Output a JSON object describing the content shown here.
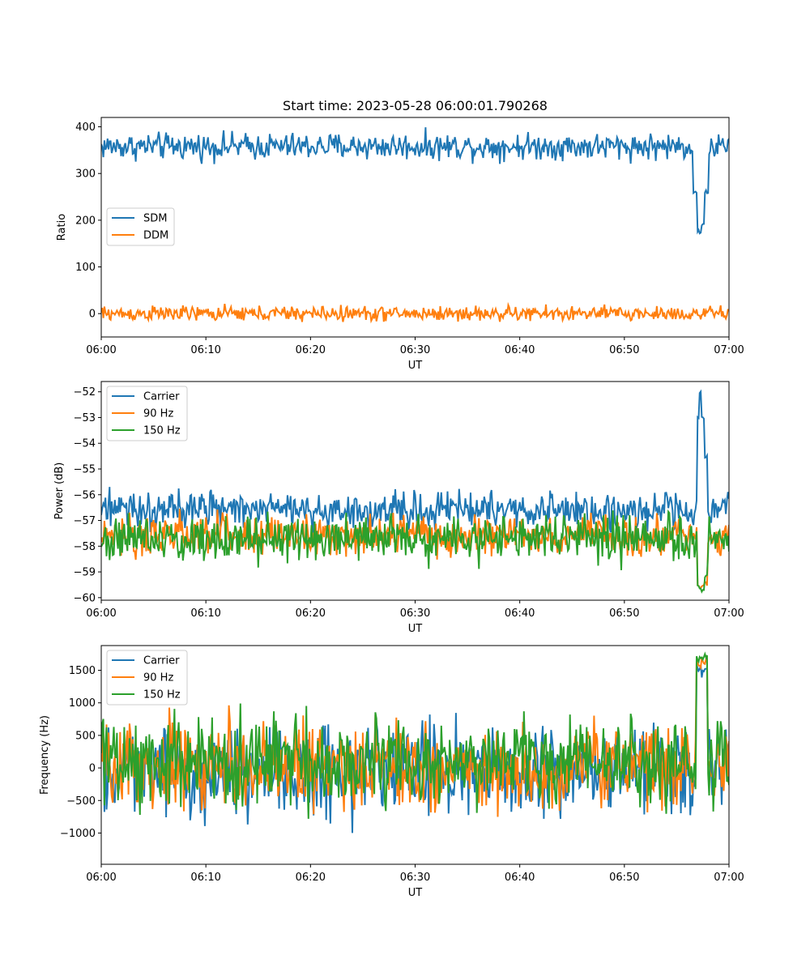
{
  "figure": {
    "title": "Start time: 2023-05-28 06:00:01.790268"
  },
  "colors": {
    "c1": "#1f77b4",
    "c2": "#ff7f0e",
    "c3": "#2ca02c"
  },
  "chart_data": [
    {
      "type": "line",
      "title": "Start time: 2023-05-28 06:00:01.790268",
      "xlabel": "UT",
      "ylabel": "Ratio",
      "xlim": [
        0,
        60
      ],
      "ylim": [
        -50,
        420
      ],
      "xticks": [
        0,
        10,
        20,
        30,
        40,
        50,
        60
      ],
      "xtick_labels": [
        "06:00",
        "06:10",
        "06:20",
        "06:30",
        "06:40",
        "06:50",
        "07:00"
      ],
      "yticks": [
        0,
        100,
        200,
        300,
        400
      ],
      "ytick_labels": [
        "0",
        "100",
        "200",
        "300",
        "400"
      ],
      "legend": "center-left",
      "series": [
        {
          "name": "SDM",
          "color": "#1f77b4",
          "base": 358,
          "noise": 14,
          "events": [
            [
              56.6,
              57.0,
              260
            ],
            [
              57.0,
              57.4,
              175
            ],
            [
              57.4,
              57.7,
              190
            ],
            [
              57.7,
              58.0,
              260
            ]
          ]
        },
        {
          "name": "DDM",
          "color": "#ff7f0e",
          "base": 0,
          "noise": 8,
          "events": []
        }
      ]
    },
    {
      "type": "line",
      "title": "",
      "xlabel": "UT",
      "ylabel": "Power (dB)",
      "xlim": [
        0,
        60
      ],
      "ylim": [
        -60.1,
        -51.6
      ],
      "xticks": [
        0,
        10,
        20,
        30,
        40,
        50,
        60
      ],
      "xtick_labels": [
        "06:00",
        "06:10",
        "06:20",
        "06:30",
        "06:40",
        "06:50",
        "07:00"
      ],
      "yticks": [
        -60,
        -59,
        -58,
        -57,
        -56,
        -55,
        -54,
        -53,
        -52
      ],
      "ytick_labels": [
        "−60",
        "−59",
        "−58",
        "−57",
        "−56",
        "−55",
        "−54",
        "−53",
        "−52"
      ],
      "legend": "upper-left",
      "series": [
        {
          "name": "Carrier",
          "color": "#1f77b4",
          "base": -56.6,
          "noise": 0.35,
          "events": [
            [
              57.0,
              57.2,
              -53.0
            ],
            [
              57.2,
              57.4,
              -52.0
            ],
            [
              57.4,
              57.6,
              -53.0
            ],
            [
              57.6,
              57.9,
              -54.5
            ]
          ]
        },
        {
          "name": "90 Hz",
          "color": "#ff7f0e",
          "base": -57.6,
          "noise": 0.4,
          "events": [
            [
              57.0,
              57.3,
              -59.5
            ],
            [
              57.3,
              57.6,
              -59.6
            ],
            [
              57.6,
              57.9,
              -59.4
            ]
          ]
        },
        {
          "name": "150 Hz",
          "color": "#2ca02c",
          "base": -57.7,
          "noise": 0.45,
          "events": [
            [
              57.0,
              57.3,
              -59.6
            ],
            [
              57.3,
              57.6,
              -59.7
            ],
            [
              57.6,
              57.9,
              -59.2
            ]
          ]
        }
      ]
    },
    {
      "type": "line",
      "title": "",
      "xlabel": "UT",
      "ylabel": "Frequency (Hz)",
      "xlim": [
        0,
        60
      ],
      "ylim": [
        -1480,
        1880
      ],
      "xticks": [
        0,
        10,
        20,
        30,
        40,
        50,
        60
      ],
      "xtick_labels": [
        "06:00",
        "06:10",
        "06:20",
        "06:30",
        "06:40",
        "06:50",
        "07:00"
      ],
      "yticks": [
        -1000,
        -500,
        0,
        500,
        1000,
        1500
      ],
      "ytick_labels": [
        "−1000",
        "−500",
        "0",
        "500",
        "1000",
        "1500"
      ],
      "legend": "upper-left",
      "series": [
        {
          "name": "Carrier",
          "color": "#1f77b4",
          "base": -40,
          "noise": 330,
          "events": [
            [
              56.9,
              57.9,
              1520
            ]
          ]
        },
        {
          "name": "90 Hz",
          "color": "#ff7f0e",
          "base": 40,
          "noise": 330,
          "events": [
            [
              56.9,
              57.9,
              1620
            ]
          ]
        },
        {
          "name": "150 Hz",
          "color": "#2ca02c",
          "base": 90,
          "noise": 330,
          "events": [
            [
              56.9,
              57.9,
              1700
            ]
          ]
        }
      ]
    }
  ]
}
